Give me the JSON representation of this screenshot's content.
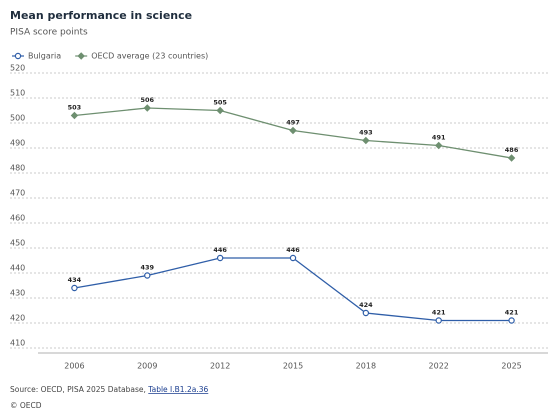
{
  "chart_data": {
    "type": "line",
    "title": "Mean performance in science",
    "subtitle": "PISA score points",
    "categories": [
      "2006",
      "2009",
      "2012",
      "2015",
      "2018",
      "2022",
      "2025"
    ],
    "series": [
      {
        "name": "Bulgaria",
        "color": "#2f5ea8",
        "marker": "circle",
        "values": [
          434,
          439,
          446,
          446,
          424,
          421,
          421
        ]
      },
      {
        "name": "OECD average (23 countries)",
        "color": "#6e8f70",
        "marker": "diamond",
        "values": [
          503,
          506,
          505,
          497,
          493,
          491,
          486
        ]
      }
    ],
    "ylim": [
      408,
      520
    ],
    "yticks": [
      410,
      420,
      430,
      440,
      450,
      460,
      470,
      480,
      490,
      500,
      510,
      520
    ],
    "grid": true,
    "legend": "top-left",
    "source": {
      "text": "Source: OECD, PISA 2025 Database, ",
      "link": "Table I.B1.2a.36"
    },
    "copyright": "© OECD"
  }
}
